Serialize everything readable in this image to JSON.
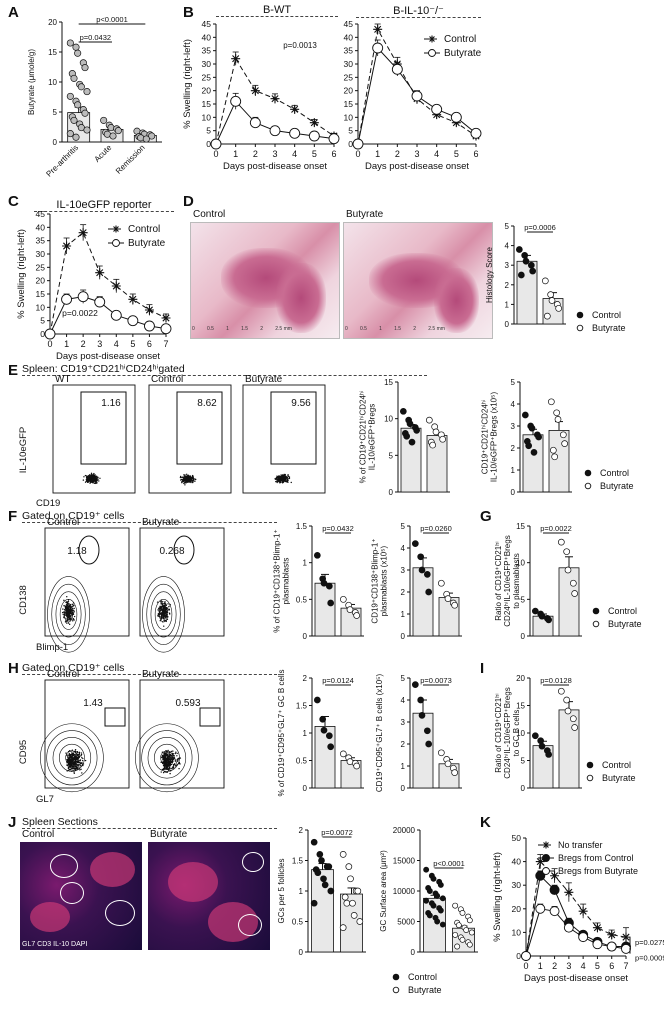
{
  "panels": {
    "A": {
      "label": "A"
    },
    "B": {
      "label": "B",
      "left_title": "B-WT",
      "right_title": "B-IL-10⁻/⁻",
      "p": "p=0.0013"
    },
    "C": {
      "label": "C",
      "title": "IL-10eGFP reporter",
      "p": "p=0.0022"
    },
    "D": {
      "label": "D",
      "img1": "Control",
      "img2": "Butyrate",
      "scale_ticks": [
        "0",
        "0.5",
        "1",
        "1.5",
        "2",
        "2.5 mm"
      ],
      "p": "p=0.0006"
    },
    "E": {
      "label": "E",
      "gate": "Spleen: CD19⁺CD21ʰⁱCD24ʰⁱgated",
      "facs": [
        {
          "name": "WT",
          "value": "1.16"
        },
        {
          "name": "Control",
          "value": "8.62"
        },
        {
          "name": "Butyrate",
          "value": "9.56"
        }
      ],
      "yaxis": "IL-10eGFP",
      "xaxis": "CD19"
    },
    "F": {
      "label": "F",
      "gate": "Gated on CD19⁺ cells",
      "facs": [
        {
          "name": "Control",
          "value": "1.18"
        },
        {
          "name": "Butyrate",
          "value": "0.268"
        }
      ],
      "yaxis": "CD138",
      "xaxis": "Blimp-1",
      "p1": "p=0.0432",
      "p2": "p=0.0260"
    },
    "G": {
      "label": "G",
      "p": "p=0.0022"
    },
    "H": {
      "label": "H",
      "gate": "Gated on CD19⁺ cells",
      "facs": [
        {
          "name": "Control",
          "value": "1.43"
        },
        {
          "name": "Butyrate",
          "value": "0.593"
        }
      ],
      "yaxis": "CD95",
      "xaxis": "GL7",
      "p1": "p=0.0124",
      "p2": "p=0.0073"
    },
    "I": {
      "label": "I",
      "p": "p=0.0128"
    },
    "J": {
      "label": "J",
      "title": "Spleen Sections",
      "img1": "Control",
      "img2": "Butyrate",
      "stain": "GL7 CD3 IL-10 DAPI",
      "p1": "p=0.0072",
      "p2": "p<0.0001"
    },
    "K": {
      "label": "K",
      "p1": "p=0.0275",
      "p2": "p=0.0009"
    }
  },
  "legend": {
    "control": "Control",
    "butyrate": "Butyrate"
  },
  "chart_data": [
    {
      "id": "A",
      "type": "bar",
      "categories": [
        "Pre-arthritis",
        "Acute",
        "Remission"
      ],
      "values": [
        4.9,
        2.1,
        1.1
      ],
      "ylabel": "Butyrate (μmole/g)",
      "ylim": [
        0,
        20
      ],
      "yticks": [
        0,
        5,
        10,
        15,
        20
      ],
      "points": [
        [
          16.5,
          15.8,
          14.8,
          13.2,
          12.4,
          11.4,
          10.6,
          9.6,
          9.2,
          8.4,
          7.6,
          6.8,
          6.2,
          5.4,
          4.8,
          4.2,
          3.6,
          3.0,
          2.4,
          2.0,
          1.4,
          0.8
        ],
        [
          3.6,
          2.8,
          2.4,
          2.2,
          1.9,
          1.6,
          1.3,
          1.0
        ],
        [
          1.8,
          1.5,
          1.3,
          1.2,
          1.0,
          0.9,
          0.7,
          0.5
        ]
      ],
      "errors": [
        0.9,
        0.35,
        0.15
      ],
      "annotations": [
        "p<0.0001",
        "p=0.0432"
      ]
    },
    {
      "id": "B-WT",
      "type": "line",
      "x": [
        0,
        1,
        2,
        3,
        4,
        5,
        6
      ],
      "xlabel": "Days post-disease onset",
      "ylabel": "% Swelling (right-left)",
      "ylim": [
        0,
        45
      ],
      "yticks": [
        0,
        5,
        10,
        15,
        20,
        25,
        30,
        35,
        40,
        45
      ],
      "series": [
        {
          "name": "Control",
          "values": [
            0,
            32,
            20,
            17,
            13,
            8,
            3
          ],
          "err": [
            0,
            2.5,
            2,
            1.8,
            1.5,
            1.2,
            1
          ]
        },
        {
          "name": "Butyrate",
          "values": [
            0,
            16,
            8,
            5,
            4,
            3,
            2
          ],
          "err": [
            0,
            3,
            2,
            1.5,
            1,
            1,
            1
          ]
        }
      ]
    },
    {
      "id": "B-IL10KO",
      "type": "line",
      "x": [
        0,
        1,
        2,
        3,
        4,
        5,
        6
      ],
      "xlabel": "Days post-disease onset",
      "ylim": [
        0,
        45
      ],
      "yticks": [
        0,
        5,
        10,
        15,
        20,
        25,
        30,
        35,
        40,
        45
      ],
      "series": [
        {
          "name": "Control",
          "values": [
            0,
            43,
            30,
            17,
            11,
            8,
            3
          ],
          "err": [
            0,
            2,
            2.5,
            2,
            1.5,
            1.2,
            1
          ]
        },
        {
          "name": "Butyrate",
          "values": [
            0,
            36,
            28,
            18,
            13,
            10,
            4
          ],
          "err": [
            0,
            3,
            2.5,
            2,
            1.5,
            1.5,
            1
          ]
        }
      ]
    },
    {
      "id": "C",
      "type": "line",
      "x": [
        0,
        1,
        2,
        3,
        4,
        5,
        6,
        7
      ],
      "xlabel": "Days post-disease onset",
      "ylabel": "% Swelling (right-left)",
      "ylim": [
        0,
        45
      ],
      "yticks": [
        0,
        5,
        10,
        15,
        20,
        25,
        30,
        35,
        40,
        45
      ],
      "series": [
        {
          "name": "Control",
          "values": [
            0,
            33,
            38,
            23,
            18,
            13,
            9,
            6
          ],
          "err": [
            0,
            3,
            3,
            2.5,
            2.5,
            2,
            2,
            1.5
          ]
        },
        {
          "name": "Butyrate",
          "values": [
            0,
            13,
            14,
            12,
            7,
            5,
            3,
            2
          ],
          "err": [
            0,
            2,
            2.5,
            2,
            1.5,
            1.2,
            1,
            1
          ]
        }
      ]
    },
    {
      "id": "D",
      "type": "bar",
      "categories": [
        "Control",
        "Butyrate"
      ],
      "values": [
        3.2,
        1.3
      ],
      "errors": [
        0.3,
        0.3
      ],
      "ylabel": "Histology Score",
      "ylim": [
        0,
        5
      ],
      "yticks": [
        0,
        1,
        2,
        3,
        4,
        5
      ],
      "points": [
        [
          3.8,
          3.5,
          3.2,
          3.0,
          2.7,
          2.5
        ],
        [
          2.2,
          1.5,
          1.2,
          1.0,
          0.8,
          0.4
        ]
      ]
    },
    {
      "id": "E1",
      "type": "bar",
      "categories": [
        "Control",
        "Butyrate"
      ],
      "values": [
        8.7,
        7.7
      ],
      "errors": [
        0.5,
        0.4
      ],
      "ylabel": "% of CD19⁺CD21ʰⁱCD24ʰⁱ IL-10/eGFP⁺Bregs",
      "ylim": [
        0,
        15
      ],
      "yticks": [
        0,
        5,
        10,
        15
      ],
      "points": [
        [
          11.0,
          9.8,
          9.3,
          8.8,
          8.4,
          8.0,
          7.6,
          6.8
        ],
        [
          9.8,
          8.9,
          8.2,
          7.8,
          7.2,
          6.8,
          6.4
        ]
      ]
    },
    {
      "id": "E2",
      "type": "bar",
      "categories": [
        "Control",
        "Butyrate"
      ],
      "values": [
        2.6,
        2.8
      ],
      "errors": [
        0.25,
        0.4
      ],
      "ylabel": "CD19⁺CD21ʰⁱCD24ʰⁱ IL-10/eGFP⁺Bregs (x10⁵)",
      "ylim": [
        0,
        5
      ],
      "yticks": [
        0,
        1,
        2,
        3,
        4,
        5
      ],
      "points": [
        [
          3.5,
          3.0,
          2.9,
          2.6,
          2.5,
          2.3,
          2.1,
          1.8
        ],
        [
          4.1,
          3.6,
          3.3,
          2.6,
          2.2,
          1.9,
          1.6
        ]
      ]
    },
    {
      "id": "F1",
      "type": "bar",
      "categories": [
        "Control",
        "Butyrate"
      ],
      "values": [
        0.72,
        0.38
      ],
      "errors": [
        0.12,
        0.05
      ],
      "ylabel": "% of CD19⁺CD138⁺Blimp-1⁺ plasmablasts",
      "ylim": [
        0,
        1.5
      ],
      "yticks": [
        0,
        0.5,
        1.0,
        1.5
      ],
      "points": [
        [
          1.1,
          0.78,
          0.72,
          0.68,
          0.45
        ],
        [
          0.5,
          0.42,
          0.36,
          0.32,
          0.28
        ]
      ]
    },
    {
      "id": "F2",
      "type": "bar",
      "categories": [
        "Control",
        "Butyrate"
      ],
      "values": [
        3.1,
        1.75
      ],
      "errors": [
        0.45,
        0.2
      ],
      "ylabel": "CD19⁺CD138⁺Blimp-1⁺ plasmablasts (x10⁵)",
      "ylim": [
        0,
        5
      ],
      "yticks": [
        0,
        1,
        2,
        3,
        4,
        5
      ],
      "points": [
        [
          4.2,
          3.6,
          3.0,
          2.8,
          2.0
        ],
        [
          2.4,
          1.9,
          1.7,
          1.5,
          1.4
        ]
      ]
    },
    {
      "id": "G",
      "type": "bar",
      "categories": [
        "Control",
        "Butyrate"
      ],
      "values": [
        2.7,
        9.3
      ],
      "errors": [
        0.3,
        1.5
      ],
      "ylabel": "Ratio of CD19⁺CD21ʰⁱ CD24ʰⁱIL-10/eGFP⁺Bregs to plasmablasts",
      "ylim": [
        0,
        15
      ],
      "yticks": [
        0,
        5,
        10,
        15
      ],
      "points": [
        [
          3.4,
          3.0,
          2.7,
          2.4,
          2.2
        ],
        [
          12.8,
          11.5,
          9.0,
          7.2,
          5.8
        ]
      ]
    },
    {
      "id": "H1",
      "type": "bar",
      "categories": [
        "Control",
        "Butyrate"
      ],
      "values": [
        1.12,
        0.5
      ],
      "errors": [
        0.18,
        0.05
      ],
      "ylabel": "% of CD19⁺CD95⁺GL7⁺ GC B cells",
      "ylim": [
        0,
        2.0
      ],
      "yticks": [
        0,
        0.5,
        1.0,
        1.5,
        2.0
      ],
      "points": [
        [
          1.6,
          1.25,
          1.05,
          0.95,
          0.75
        ],
        [
          0.62,
          0.55,
          0.48,
          0.45,
          0.4
        ]
      ]
    },
    {
      "id": "H2",
      "type": "bar",
      "categories": [
        "Control",
        "Butyrate"
      ],
      "values": [
        3.4,
        1.1
      ],
      "errors": [
        0.6,
        0.2
      ],
      "ylabel": "CD19⁺CD95⁺GL7⁺ B cells (x10⁵)",
      "ylim": [
        0,
        5
      ],
      "yticks": [
        0,
        1,
        2,
        3,
        4,
        5
      ],
      "points": [
        [
          4.7,
          4.0,
          3.3,
          2.6,
          2.0
        ],
        [
          1.6,
          1.3,
          1.1,
          0.9,
          0.7
        ]
      ]
    },
    {
      "id": "I",
      "type": "bar",
      "categories": [
        "Control",
        "Butyrate"
      ],
      "values": [
        7.7,
        14.2
      ],
      "errors": [
        0.8,
        1.5
      ],
      "ylabel": "Ratio of CD19⁺CD21ʰⁱ CD24ʰⁱIL-10/eGFP⁺Bregs to GC B cells",
      "ylim": [
        0,
        20
      ],
      "yticks": [
        0,
        5,
        10,
        15,
        20
      ],
      "points": [
        [
          9.5,
          8.6,
          7.6,
          6.8,
          6.1
        ],
        [
          17.6,
          16.0,
          14.0,
          12.6,
          11.0
        ]
      ]
    },
    {
      "id": "J1",
      "type": "bar",
      "categories": [
        "Control",
        "Butyrate"
      ],
      "values": [
        1.35,
        0.95
      ],
      "errors": [
        0.1,
        0.1
      ],
      "ylabel": "GCs per 5 follicles",
      "ylim": [
        0,
        2.0
      ],
      "yticks": [
        0,
        0.5,
        1.0,
        1.5,
        2.0
      ],
      "points": [
        [
          1.8,
          1.6,
          1.5,
          1.4,
          1.4,
          1.35,
          1.3,
          1.2,
          1.1,
          1.0,
          0.8
        ],
        [
          1.6,
          1.4,
          1.2,
          1.0,
          1.0,
          0.9,
          0.8,
          0.8,
          0.6,
          0.5,
          0.4
        ]
      ]
    },
    {
      "id": "J2",
      "type": "bar",
      "categories": [
        "Control",
        "Butyrate"
      ],
      "values": [
        8800,
        3900
      ],
      "errors": [
        500,
        350
      ],
      "ylabel": "GC Surface area (μm²)",
      "ylim": [
        0,
        20000
      ],
      "yticks": [
        0,
        5000,
        10000,
        15000,
        20000
      ],
      "points": [
        [
          13500,
          12500,
          12000,
          11500,
          11000,
          10500,
          10000,
          9600,
          9200,
          8800,
          8400,
          8000,
          7600,
          7200,
          6800,
          6400,
          6000,
          5600,
          5000,
          4500
        ],
        [
          7600,
          7000,
          6400,
          5800,
          5200,
          4800,
          4400,
          4000,
          3600,
          3200,
          2800,
          2400,
          2000,
          1600,
          1200,
          900
        ]
      ]
    },
    {
      "id": "K",
      "type": "line",
      "x": [
        0,
        1,
        2,
        3,
        4,
        5,
        6,
        7
      ],
      "xlabel": "Days post-disease onset",
      "ylabel": "% Swelling (right-left)",
      "ylim": [
        0,
        50
      ],
      "yticks": [
        0,
        10,
        20,
        30,
        40,
        50
      ],
      "series": [
        {
          "name": "No transfer",
          "values": [
            0,
            40,
            34,
            27,
            19,
            12,
            9,
            8
          ],
          "err": [
            0,
            3,
            3,
            4,
            3,
            2,
            2,
            4
          ]
        },
        {
          "name": "Bregs from Control",
          "values": [
            0,
            34,
            28,
            14,
            9,
            6,
            4,
            4
          ],
          "err": [
            0,
            2,
            2,
            2,
            1.5,
            1,
            1,
            1
          ]
        },
        {
          "name": "Bregs from Butyrate",
          "values": [
            0,
            20,
            19,
            12,
            8,
            5,
            4,
            3
          ],
          "err": [
            0,
            2,
            2,
            2,
            1.5,
            1,
            1,
            1
          ]
        }
      ]
    }
  ]
}
